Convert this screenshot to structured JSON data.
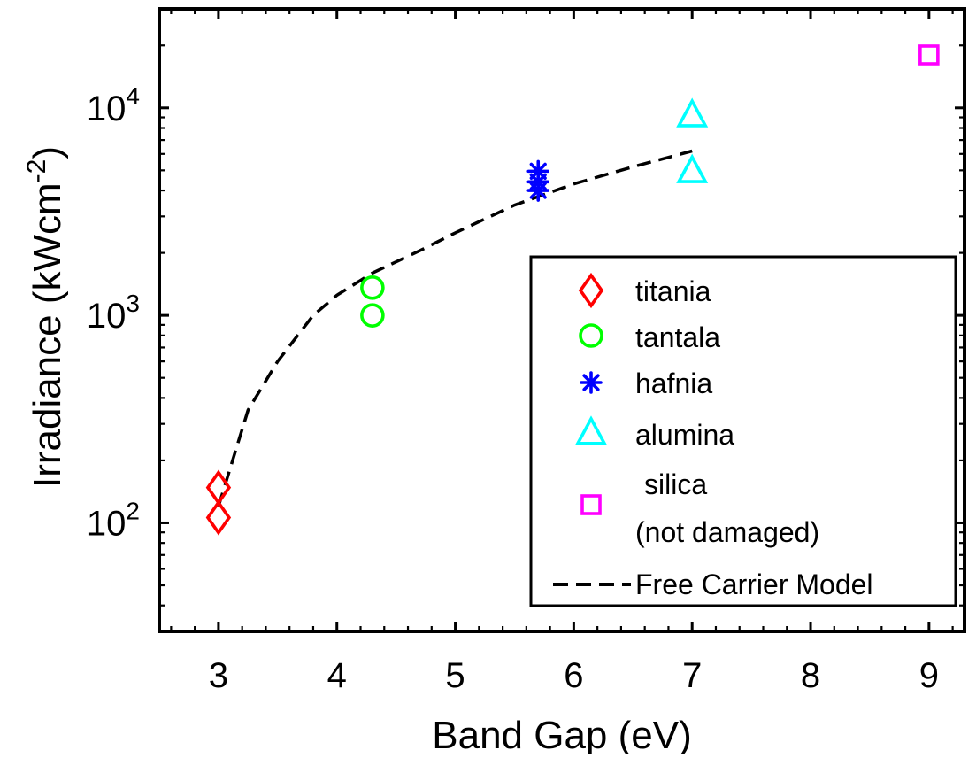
{
  "chart_data": {
    "type": "scatter",
    "title": "",
    "xlabel": "Band Gap (eV)",
    "ylabel_main": "Irradiance (kWcm",
    "ylabel_sup": "-2",
    "ylabel_close": ")",
    "xlim": [
      2.5,
      9.3
    ],
    "ylim": [
      30,
      30000
    ],
    "yscale": "log",
    "x_ticks": [
      3,
      4,
      5,
      6,
      7,
      8,
      9
    ],
    "x_tick_labels": [
      "3",
      "4",
      "5",
      "6",
      "7",
      "8",
      "9"
    ],
    "y_ticks": [
      {
        "value": 100,
        "base": "10",
        "exp": "2"
      },
      {
        "value": 1000,
        "base": "10",
        "exp": "3"
      },
      {
        "value": 10000,
        "base": "10",
        "exp": "4"
      }
    ],
    "grid": false,
    "legend_position": "lower-right",
    "series": [
      {
        "name": "titania",
        "marker": "diamond",
        "color": "#ff0000",
        "x": [
          3.0,
          3.0
        ],
        "y": [
          148,
          106
        ]
      },
      {
        "name": "tantala",
        "marker": "circle",
        "color": "#00ff00",
        "x": [
          4.3,
          4.3
        ],
        "y": [
          1360,
          1000
        ]
      },
      {
        "name": "hafnia",
        "marker": "asterisk",
        "color": "#0000ff",
        "x": [
          5.7,
          5.7,
          5.7
        ],
        "y": [
          4950,
          4400,
          4000
        ]
      },
      {
        "name": "alumina",
        "marker": "triangle",
        "color": "#00ffff",
        "x": [
          7.0,
          7.0
        ],
        "y": [
          9300,
          5000
        ]
      },
      {
        "name_line1": "silica",
        "name_line2": "(not damaged)",
        "marker": "square",
        "color": "#ff00ff",
        "x": [
          9.0
        ],
        "y": [
          18000
        ]
      }
    ],
    "model": {
      "name": "Free Carrier Model",
      "style": "dashed",
      "color": "#000000",
      "x": [
        3.0,
        3.25,
        3.5,
        3.8,
        4.0,
        4.3,
        4.7,
        5.0,
        5.5,
        6.0,
        6.5,
        7.0
      ],
      "y": [
        120,
        350,
        600,
        1000,
        1250,
        1600,
        2050,
        2500,
        3400,
        4300,
        5200,
        6200
      ]
    }
  }
}
